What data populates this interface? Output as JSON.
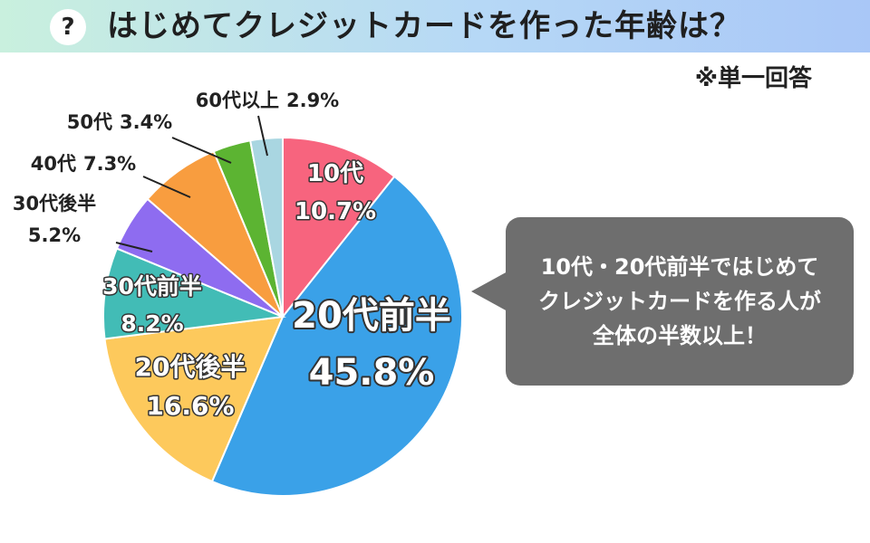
{
  "header": {
    "icon": "question-mark-icon",
    "icon_glyph": "?",
    "title": "はじめてクレジットカードを作った年齢は？"
  },
  "note": "※単一回答",
  "callout": {
    "lines": [
      "10代・20代前半ではじめて",
      "クレジットカードを作る人が",
      "全体の半数以上！"
    ]
  },
  "chart_data": {
    "type": "pie",
    "start": "12 o'clock, clockwise",
    "slices": [
      {
        "label": "10代",
        "value": 10.7,
        "value_text": "10.7%",
        "color": "#f7647e"
      },
      {
        "label": "20代前半",
        "value": 45.8,
        "value_text": "45.8%",
        "color": "#3aa1e8"
      },
      {
        "label": "20代後半",
        "value": 16.6,
        "value_text": "16.6%",
        "color": "#fdc95c"
      },
      {
        "label": "30代前半",
        "value": 8.2,
        "value_text": "8.2%",
        "color": "#42bcb6"
      },
      {
        "label": "30代後半",
        "value": 5.2,
        "value_text": "5.2%",
        "color": "#8e6cf0"
      },
      {
        "label": "40代",
        "value": 7.3,
        "value_text": "7.3%",
        "color": "#f89d3f"
      },
      {
        "label": "50代",
        "value": 3.4,
        "value_text": "3.4%",
        "color": "#5cb432"
      },
      {
        "label": "60代以上",
        "value": 2.9,
        "value_text": "2.9%",
        "color": "#a9d6e1"
      }
    ]
  }
}
